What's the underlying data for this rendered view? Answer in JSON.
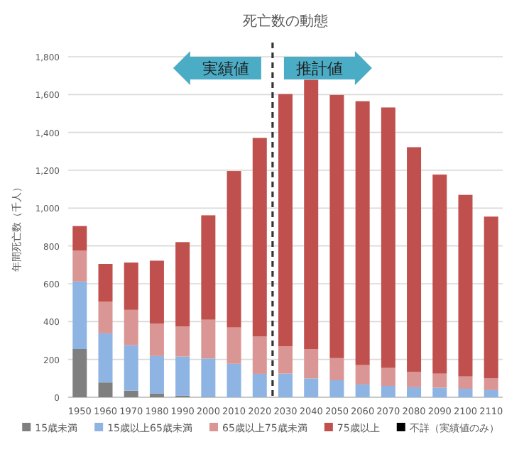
{
  "chart_data": {
    "type": "bar",
    "title": "死亡数の動態",
    "ylabel": "年間死亡数（千人）",
    "stacked": true,
    "x": [
      1950,
      1960,
      1970,
      1980,
      1990,
      2000,
      2010,
      2020,
      2030,
      2040,
      2050,
      2060,
      2070,
      2080,
      2090,
      2100,
      2110
    ],
    "xlim": [
      1945.5,
      2114.5
    ],
    "xticks": [
      1950,
      1960,
      1970,
      1980,
      1990,
      2000,
      2010,
      2020,
      2030,
      2040,
      2050,
      2060,
      2070,
      2080,
      2090,
      2100,
      2110
    ],
    "ylim": [
      0,
      1800
    ],
    "yticks": [
      {
        "value": 0,
        "label": "0"
      },
      {
        "value": 200,
        "label": "200"
      },
      {
        "value": 400,
        "label": "400"
      },
      {
        "value": 600,
        "label": "600"
      },
      {
        "value": 800,
        "label": "800"
      },
      {
        "value": 1000,
        "label": "1,000"
      },
      {
        "value": 1200,
        "label": "1,200"
      },
      {
        "value": 1400,
        "label": "1,400"
      },
      {
        "value": 1600,
        "label": "1,600"
      },
      {
        "value": 1800,
        "label": "1,800"
      }
    ],
    "grid": "y",
    "legend": "bottom",
    "series": [
      {
        "name": "15歳未満",
        "color": "#7f7f7f",
        "values": [
          255,
          78,
          35,
          20,
          8,
          2,
          0,
          0,
          0,
          0,
          0,
          0,
          0,
          0,
          0,
          0,
          0
        ]
      },
      {
        "name": "15歳以上65歳未満",
        "color": "#8db4e2",
        "values": [
          357,
          260,
          240,
          198,
          207,
          203,
          177,
          124,
          125,
          100,
          90,
          68,
          60,
          53,
          50,
          45,
          38
        ]
      },
      {
        "name": "65歳以上75歳未満",
        "color": "#da9694",
        "values": [
          163,
          167,
          187,
          172,
          160,
          205,
          192,
          197,
          145,
          155,
          117,
          102,
          95,
          82,
          75,
          65,
          62
        ]
      },
      {
        "name": "75歳以上",
        "color": "#c0504d",
        "values": [
          130,
          200,
          250,
          332,
          445,
          552,
          827,
          1050,
          1333,
          1423,
          1391,
          1395,
          1377,
          1187,
          1052,
          960,
          855
        ]
      },
      {
        "name": "不詳（実績値のみ）",
        "color": "#000000",
        "values": [
          0,
          0,
          0,
          0,
          0,
          0,
          0,
          0,
          null,
          null,
          null,
          null,
          null,
          null,
          null,
          null,
          null
        ]
      }
    ],
    "ref_lines": [
      {
        "axis": "x",
        "value": 2025,
        "color": "#333333",
        "line_style": "dashed"
      }
    ],
    "annotations": [
      "実績値",
      "推計値"
    ]
  }
}
